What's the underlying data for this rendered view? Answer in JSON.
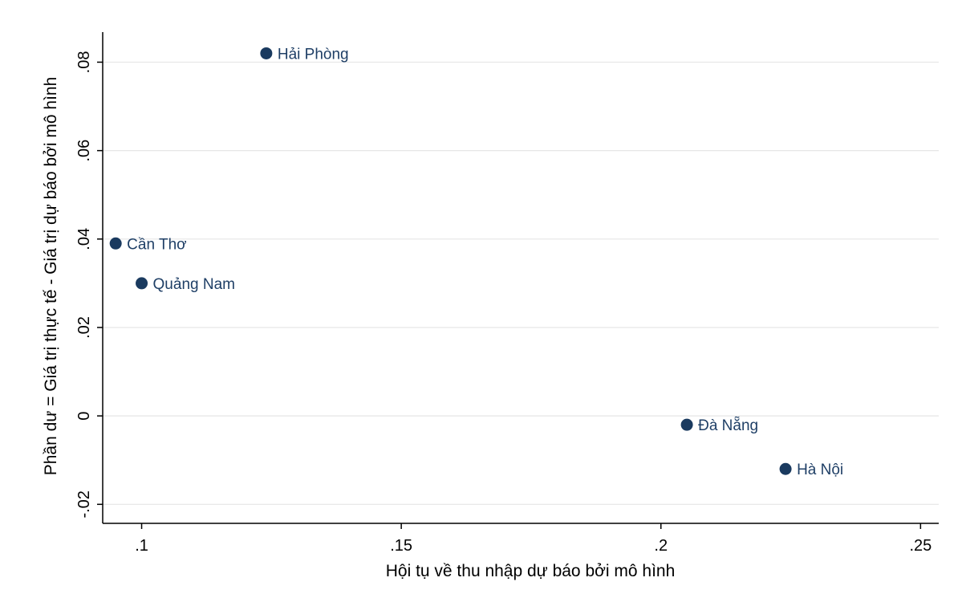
{
  "chart_data": {
    "type": "scatter",
    "title": "",
    "xlabel": "Hội tụ về thu nhập dự báo bởi mô hình",
    "ylabel": "Phần dư = Giá trị thực tế - Giá trị dự báo bởi mô hình",
    "xlim": [
      0.0925,
      0.2535
    ],
    "ylim": [
      -0.0243,
      0.0868
    ],
    "x_ticks": [
      0.1,
      0.15,
      0.2,
      0.25
    ],
    "x_tick_labels": [
      ".1",
      ".15",
      ".2",
      ".25"
    ],
    "y_ticks": [
      -0.02,
      0,
      0.02,
      0.04,
      0.06,
      0.08
    ],
    "y_tick_labels": [
      "-.02",
      "0",
      ".02",
      ".04",
      ".06",
      ".08"
    ],
    "grid": true,
    "colors": {
      "marker": "#1a3a5f",
      "label": "#1f3f66",
      "grid": "#e6e6e6",
      "axis": "#000000"
    },
    "points": [
      {
        "label": "Hải Phòng",
        "x": 0.124,
        "y": 0.082
      },
      {
        "label": "Cần Thơ",
        "x": 0.095,
        "y": 0.039
      },
      {
        "label": "Quảng Nam",
        "x": 0.1,
        "y": 0.03
      },
      {
        "label": "Đà Nẵng",
        "x": 0.205,
        "y": -0.002
      },
      {
        "label": "Hà Nội",
        "x": 0.224,
        "y": -0.012
      }
    ]
  }
}
